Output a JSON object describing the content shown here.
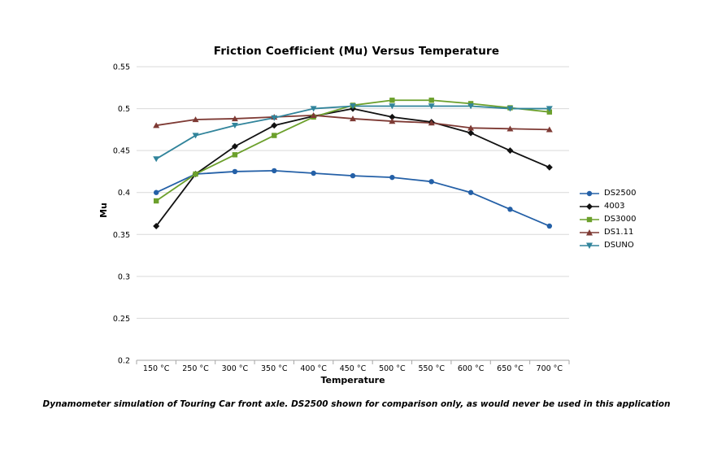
{
  "window": {
    "background": "#ffffff"
  },
  "chart_data": {
    "type": "line",
    "title": "Friction Coefficient (Mu) Versus Temperature",
    "xlabel": "Temperature",
    "ylabel": "Mu",
    "categories": [
      "150 °C",
      "250 °C",
      "300 °C",
      "350 °C",
      "400 °C",
      "450 °C",
      "500 °C",
      "550 °C",
      "600 °C",
      "650 °C",
      "700 °C"
    ],
    "y_ticks": [
      0.2,
      0.25,
      0.3,
      0.35,
      0.4,
      0.45,
      0.5,
      0.55
    ],
    "ylim": [
      0.2,
      0.55
    ],
    "grid": "horizontal",
    "gridline_color": "#d9d9d9",
    "axis_color": "#a6a6a6",
    "legend_position": "right",
    "series": [
      {
        "name": "DS2500",
        "color": "#2460a7",
        "marker": "circle",
        "values": [
          0.4,
          0.422,
          0.425,
          0.426,
          0.423,
          0.42,
          0.418,
          0.413,
          0.4,
          0.38,
          0.36
        ]
      },
      {
        "name": "4003",
        "color": "#111111",
        "marker": "diamond",
        "values": [
          0.36,
          0.422,
          0.455,
          0.48,
          0.491,
          0.5,
          0.49,
          0.484,
          0.471,
          0.45,
          0.43
        ]
      },
      {
        "name": "DS3000",
        "color": "#6ca02c",
        "marker": "square",
        "values": [
          0.39,
          0.422,
          0.445,
          0.468,
          0.49,
          0.504,
          0.51,
          0.51,
          0.506,
          0.501,
          0.496
        ]
      },
      {
        "name": "DS1.11",
        "color": "#7e3a34",
        "marker": "triangle-up",
        "values": [
          0.48,
          0.487,
          0.488,
          0.49,
          0.492,
          0.488,
          0.485,
          0.483,
          0.477,
          0.476,
          0.475
        ]
      },
      {
        "name": "DSUNO",
        "color": "#31849b",
        "marker": "triangle-down",
        "values": [
          0.44,
          0.468,
          0.48,
          0.489,
          0.5,
          0.503,
          0.503,
          0.503,
          0.503,
          0.5,
          0.5
        ]
      }
    ]
  },
  "caption": "Dynamometer simulation of Touring Car front axle. DS2500 shown for comparison only, as would never be used in this application"
}
